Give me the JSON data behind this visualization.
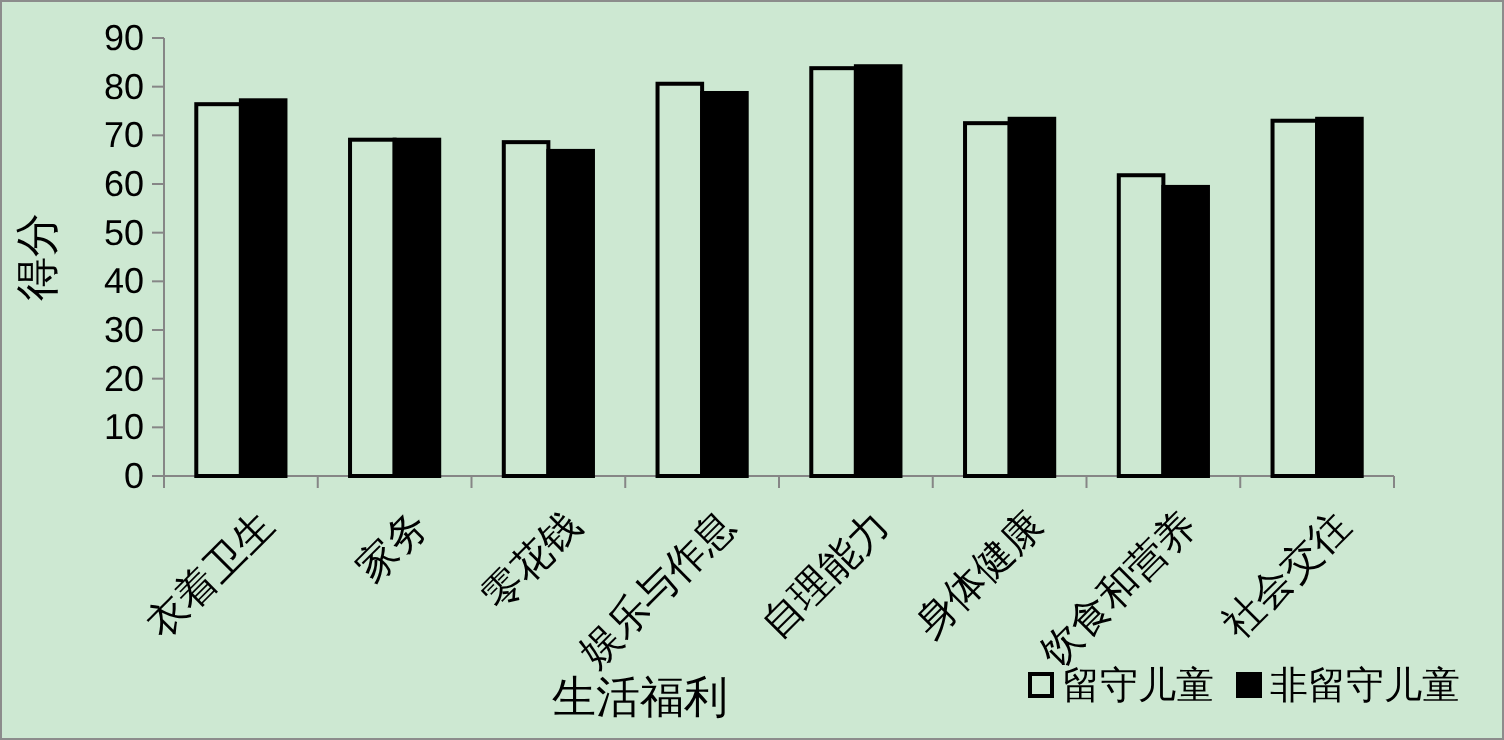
{
  "chart_data": {
    "type": "bar",
    "xlabel": "生活福利",
    "ylabel": "得分",
    "categories": [
      "衣着卫生",
      "家务",
      "零花钱",
      "娱乐与作息",
      "自理能力",
      "身体健康",
      "饮食和营养",
      "社会交往"
    ],
    "series": [
      {
        "name": "留守儿童",
        "color": "#cde8d2",
        "values": [
          76.4,
          69.1,
          68.6,
          80.6,
          83.8,
          72.5,
          61.8,
          73.0
        ]
      },
      {
        "name": "非留守儿童",
        "color": "#000000",
        "values": [
          77.2,
          69.1,
          66.8,
          78.7,
          84.2,
          73.4,
          59.4,
          73.4
        ]
      }
    ],
    "ylim": [
      0,
      90
    ],
    "yticks": [
      0,
      10,
      20,
      30,
      40,
      50,
      60,
      70,
      80,
      90
    ],
    "grid": false,
    "legend": "bottom right"
  }
}
